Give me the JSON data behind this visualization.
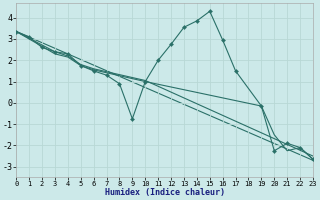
{
  "xlabel": "Humidex (Indice chaleur)",
  "bg_color": "#cce9e9",
  "grid_color": "#b8d8d5",
  "line_color": "#2a7068",
  "xlim": [
    0,
    23
  ],
  "ylim": [
    -3.5,
    4.7
  ],
  "xticks": [
    0,
    1,
    2,
    3,
    4,
    5,
    6,
    7,
    8,
    9,
    10,
    11,
    12,
    13,
    14,
    15,
    16,
    17,
    18,
    19,
    20,
    21,
    22,
    23
  ],
  "yticks": [
    -3,
    -2,
    -1,
    0,
    1,
    2,
    3,
    4
  ],
  "series1_x": [
    0,
    1,
    2,
    3,
    4,
    5,
    6,
    7,
    8,
    9,
    10,
    11,
    12,
    13,
    14,
    15,
    16,
    17,
    19,
    20,
    21,
    22,
    23
  ],
  "series1_y": [
    3.35,
    3.1,
    2.6,
    2.4,
    2.3,
    1.75,
    1.5,
    1.3,
    0.9,
    -0.75,
    1.0,
    2.0,
    2.75,
    3.55,
    3.85,
    4.3,
    2.95,
    1.5,
    -0.15,
    -2.25,
    -1.9,
    -2.1,
    -2.65
  ],
  "series2_x": [
    0,
    3,
    4,
    5,
    6,
    10,
    19,
    20,
    21,
    22,
    23
  ],
  "series2_y": [
    3.35,
    2.3,
    2.15,
    1.75,
    1.55,
    1.0,
    -0.15,
    -1.5,
    -2.25,
    -2.1,
    -2.65
  ],
  "series3_x": [
    0,
    3,
    4,
    5,
    6,
    10,
    23
  ],
  "series3_y": [
    3.35,
    2.4,
    2.2,
    1.8,
    1.6,
    1.05,
    -2.5
  ],
  "series4_x": [
    0,
    23
  ],
  "series4_y": [
    3.35,
    -2.7
  ]
}
